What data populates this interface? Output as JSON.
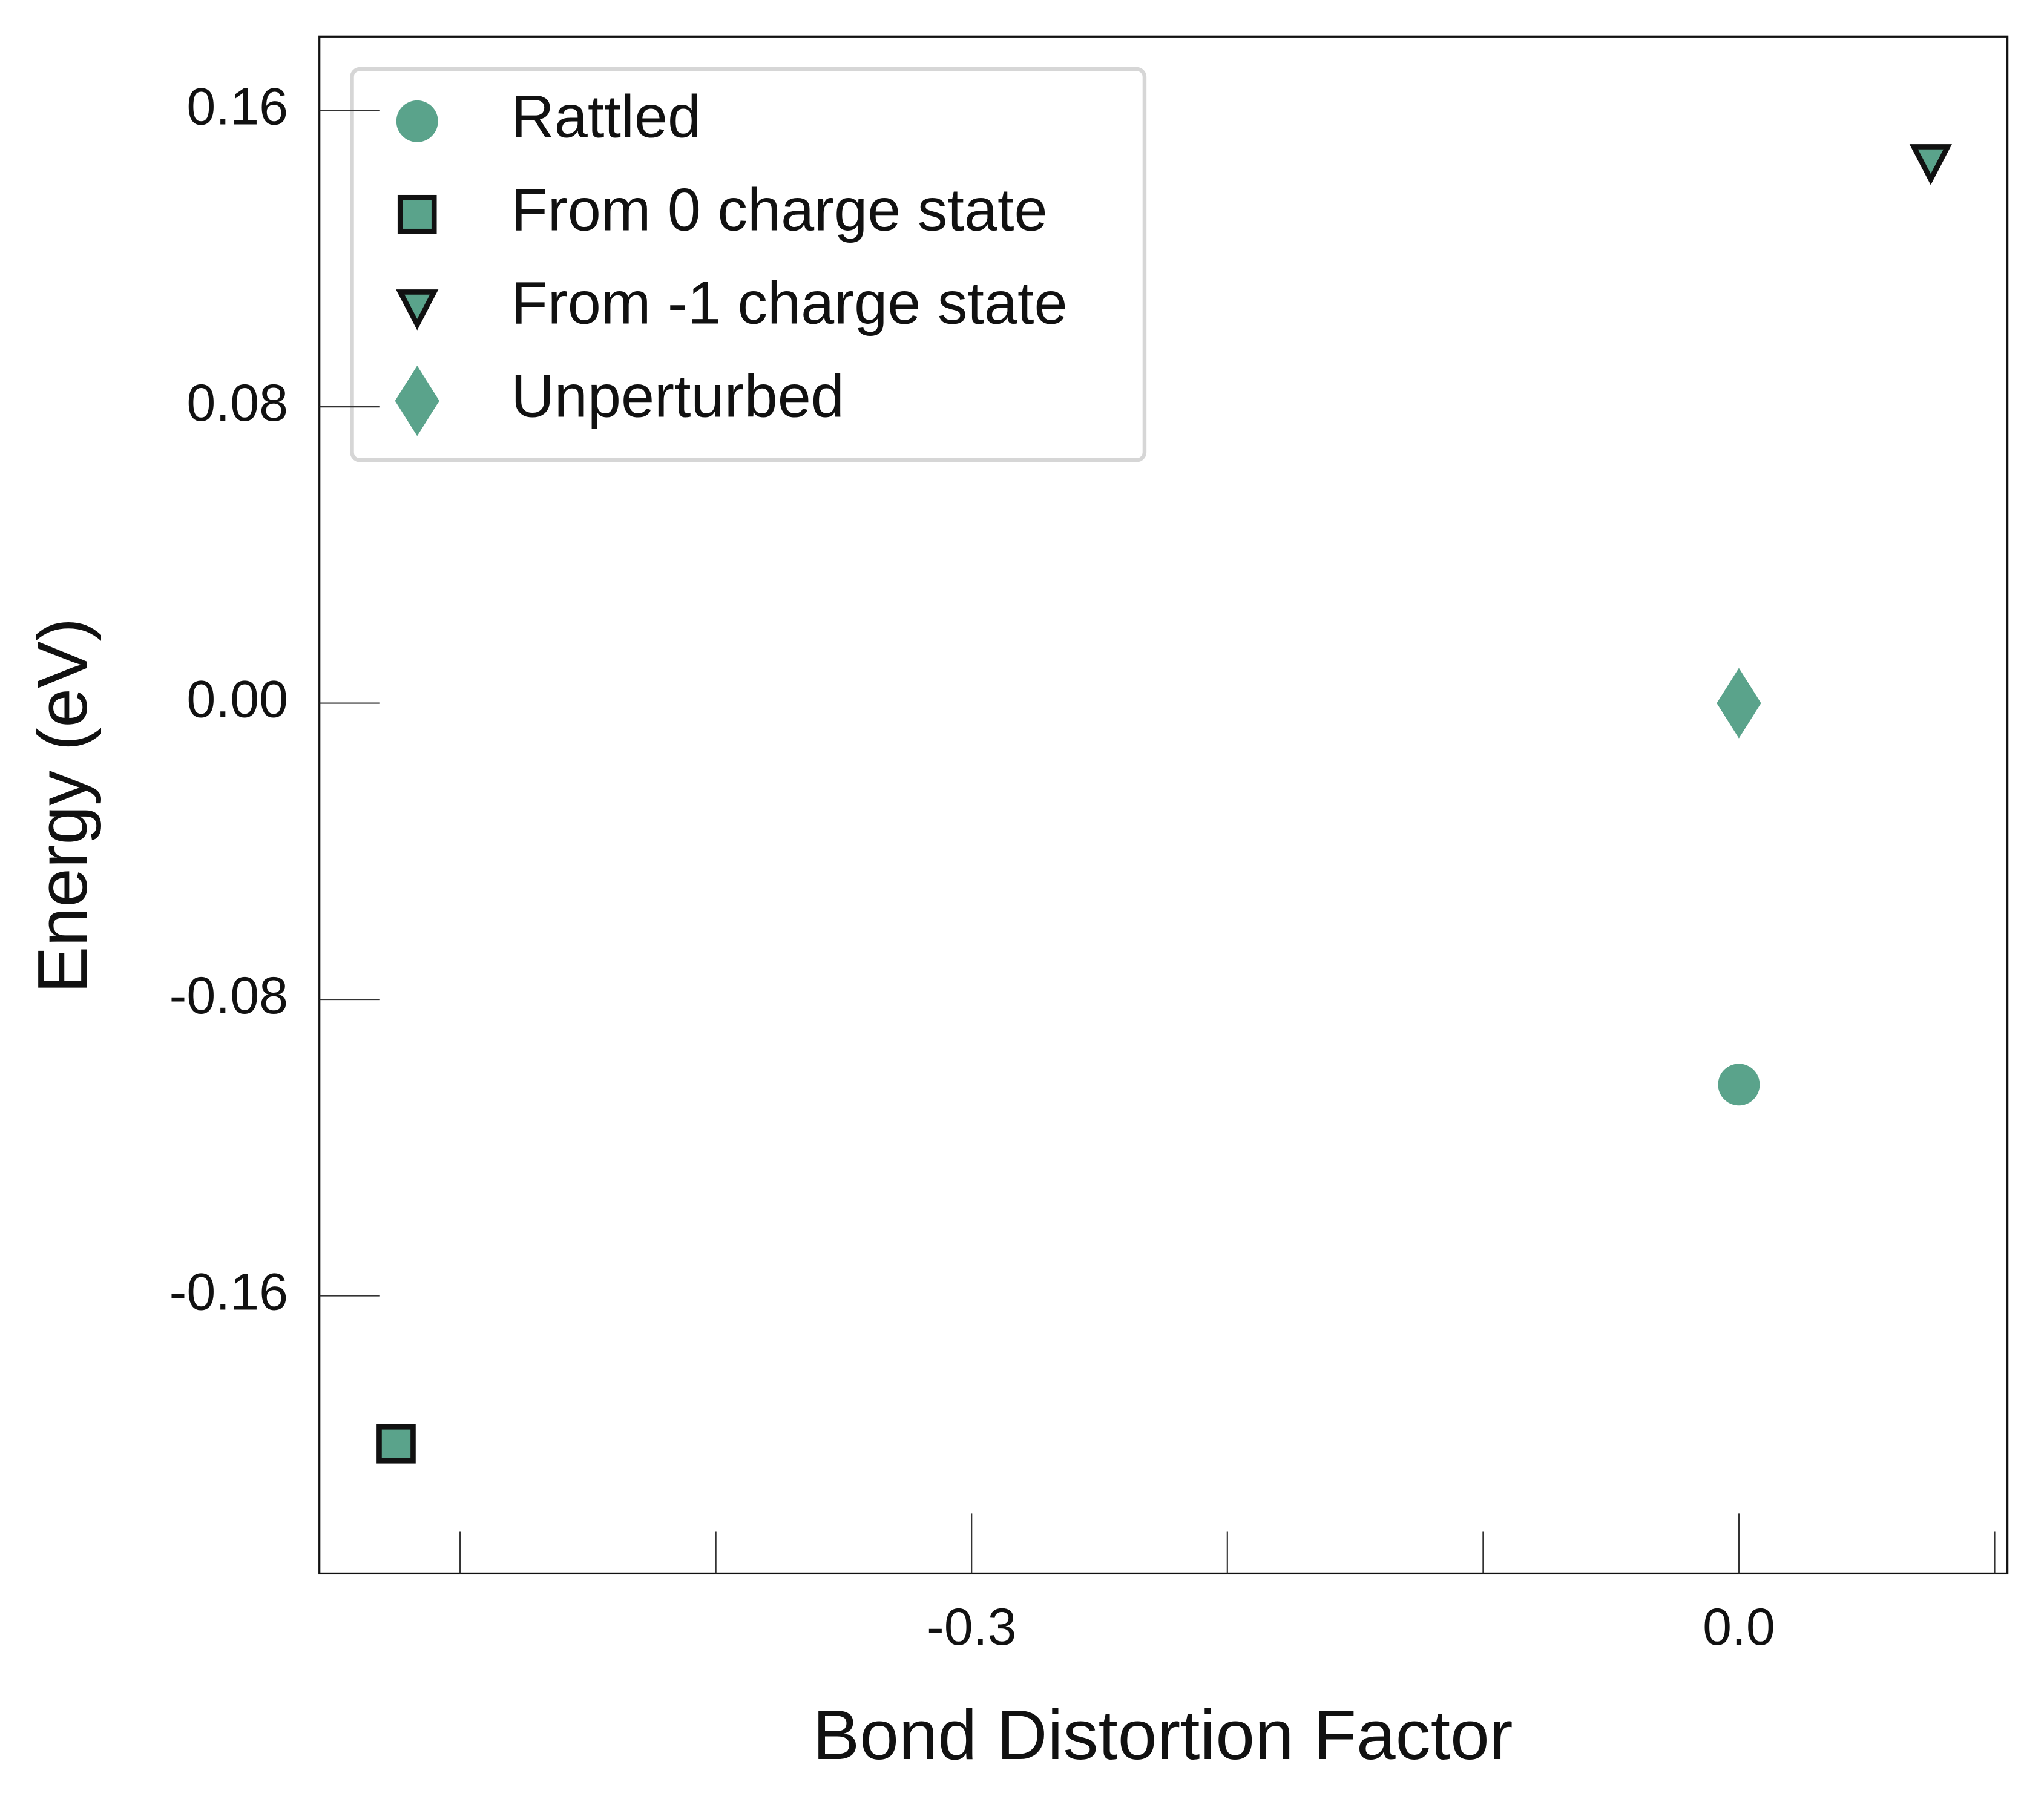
{
  "chart_data": {
    "type": "scatter",
    "xlabel": "Bond Distortion Factor",
    "ylabel": "Energy (eV)",
    "xlim": [
      -0.555,
      0.105
    ],
    "ylim": [
      -0.235,
      0.18
    ],
    "xticks": [
      -0.3,
      {
        "value": 0.0,
        "label": "0.0"
      }
    ],
    "xminor_ticks": [
      -0.5,
      -0.4,
      -0.2,
      -0.1,
      0.1
    ],
    "yticks": [
      0.16,
      0.08,
      {
        "value": 0.0,
        "label": "0.00"
      },
      -0.08,
      -0.16
    ],
    "legend": "upper left",
    "series": [
      {
        "name": "Rattled",
        "color": "#5aa38b",
        "marker": "circle",
        "edgecolor": "none",
        "x": [
          0.0
        ],
        "values": [
          -0.103
        ]
      },
      {
        "name": "From 0 charge state",
        "color": "#5aa38b",
        "marker": "square",
        "edgecolor": "#111111",
        "x": [
          -0.525
        ],
        "values": [
          -0.2
        ]
      },
      {
        "name": "From -1 charge state",
        "color": "#5aa38b",
        "marker": "triangle-down",
        "edgecolor": "#111111",
        "x": [
          0.075
        ],
        "values": [
          0.146
        ]
      },
      {
        "name": "Unperturbed",
        "color": "#5aa38b",
        "marker": "diamond",
        "edgecolor": "none",
        "x": [
          0.0
        ],
        "values": [
          0.0
        ]
      }
    ]
  }
}
